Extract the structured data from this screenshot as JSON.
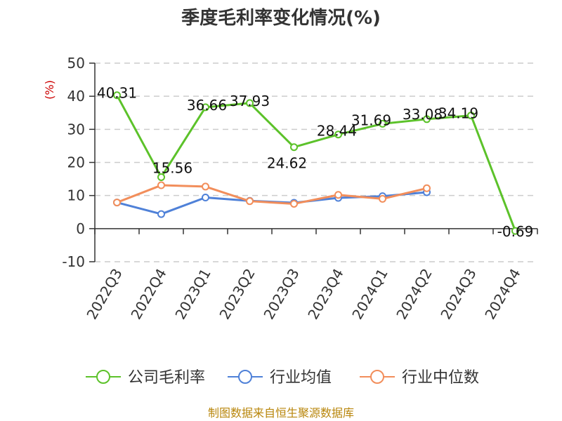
{
  "chart_data": {
    "type": "line",
    "title": "季度毛利率变化情况(%)",
    "ylabel": "(%)",
    "xlabel": "",
    "categories": [
      "2022Q3",
      "2022Q4",
      "2023Q1",
      "2023Q2",
      "2023Q3",
      "2023Q4",
      "2024Q1",
      "2024Q2",
      "2024Q3",
      "2024Q4"
    ],
    "ylim": [
      -10,
      50
    ],
    "yticks": [
      -10,
      0,
      10,
      20,
      30,
      40,
      50
    ],
    "grid": "horizontal dashed",
    "legend_position": "bottom",
    "series": [
      {
        "name": "公司毛利率",
        "color": "#5cc22a",
        "values": [
          40.31,
          15.56,
          36.66,
          37.93,
          24.62,
          28.44,
          31.69,
          33.08,
          34.19,
          -0.69
        ],
        "labels": [
          "40.31",
          "15.56",
          "36.66",
          "37.93",
          "24.62",
          "28.44",
          "31.69",
          "33.08",
          "34.19",
          "-0.69"
        ]
      },
      {
        "name": "行业均值",
        "color": "#4f81d8",
        "values": [
          7.9,
          4.4,
          9.4,
          8.4,
          7.8,
          9.3,
          9.8,
          11.0,
          null,
          null
        ]
      },
      {
        "name": "行业中位数",
        "color": "#f28e5b",
        "values": [
          7.9,
          13.1,
          12.7,
          8.3,
          7.5,
          10.2,
          9.0,
          12.2,
          null,
          null
        ]
      }
    ],
    "source": "制图数据来自恒生聚源数据库"
  }
}
